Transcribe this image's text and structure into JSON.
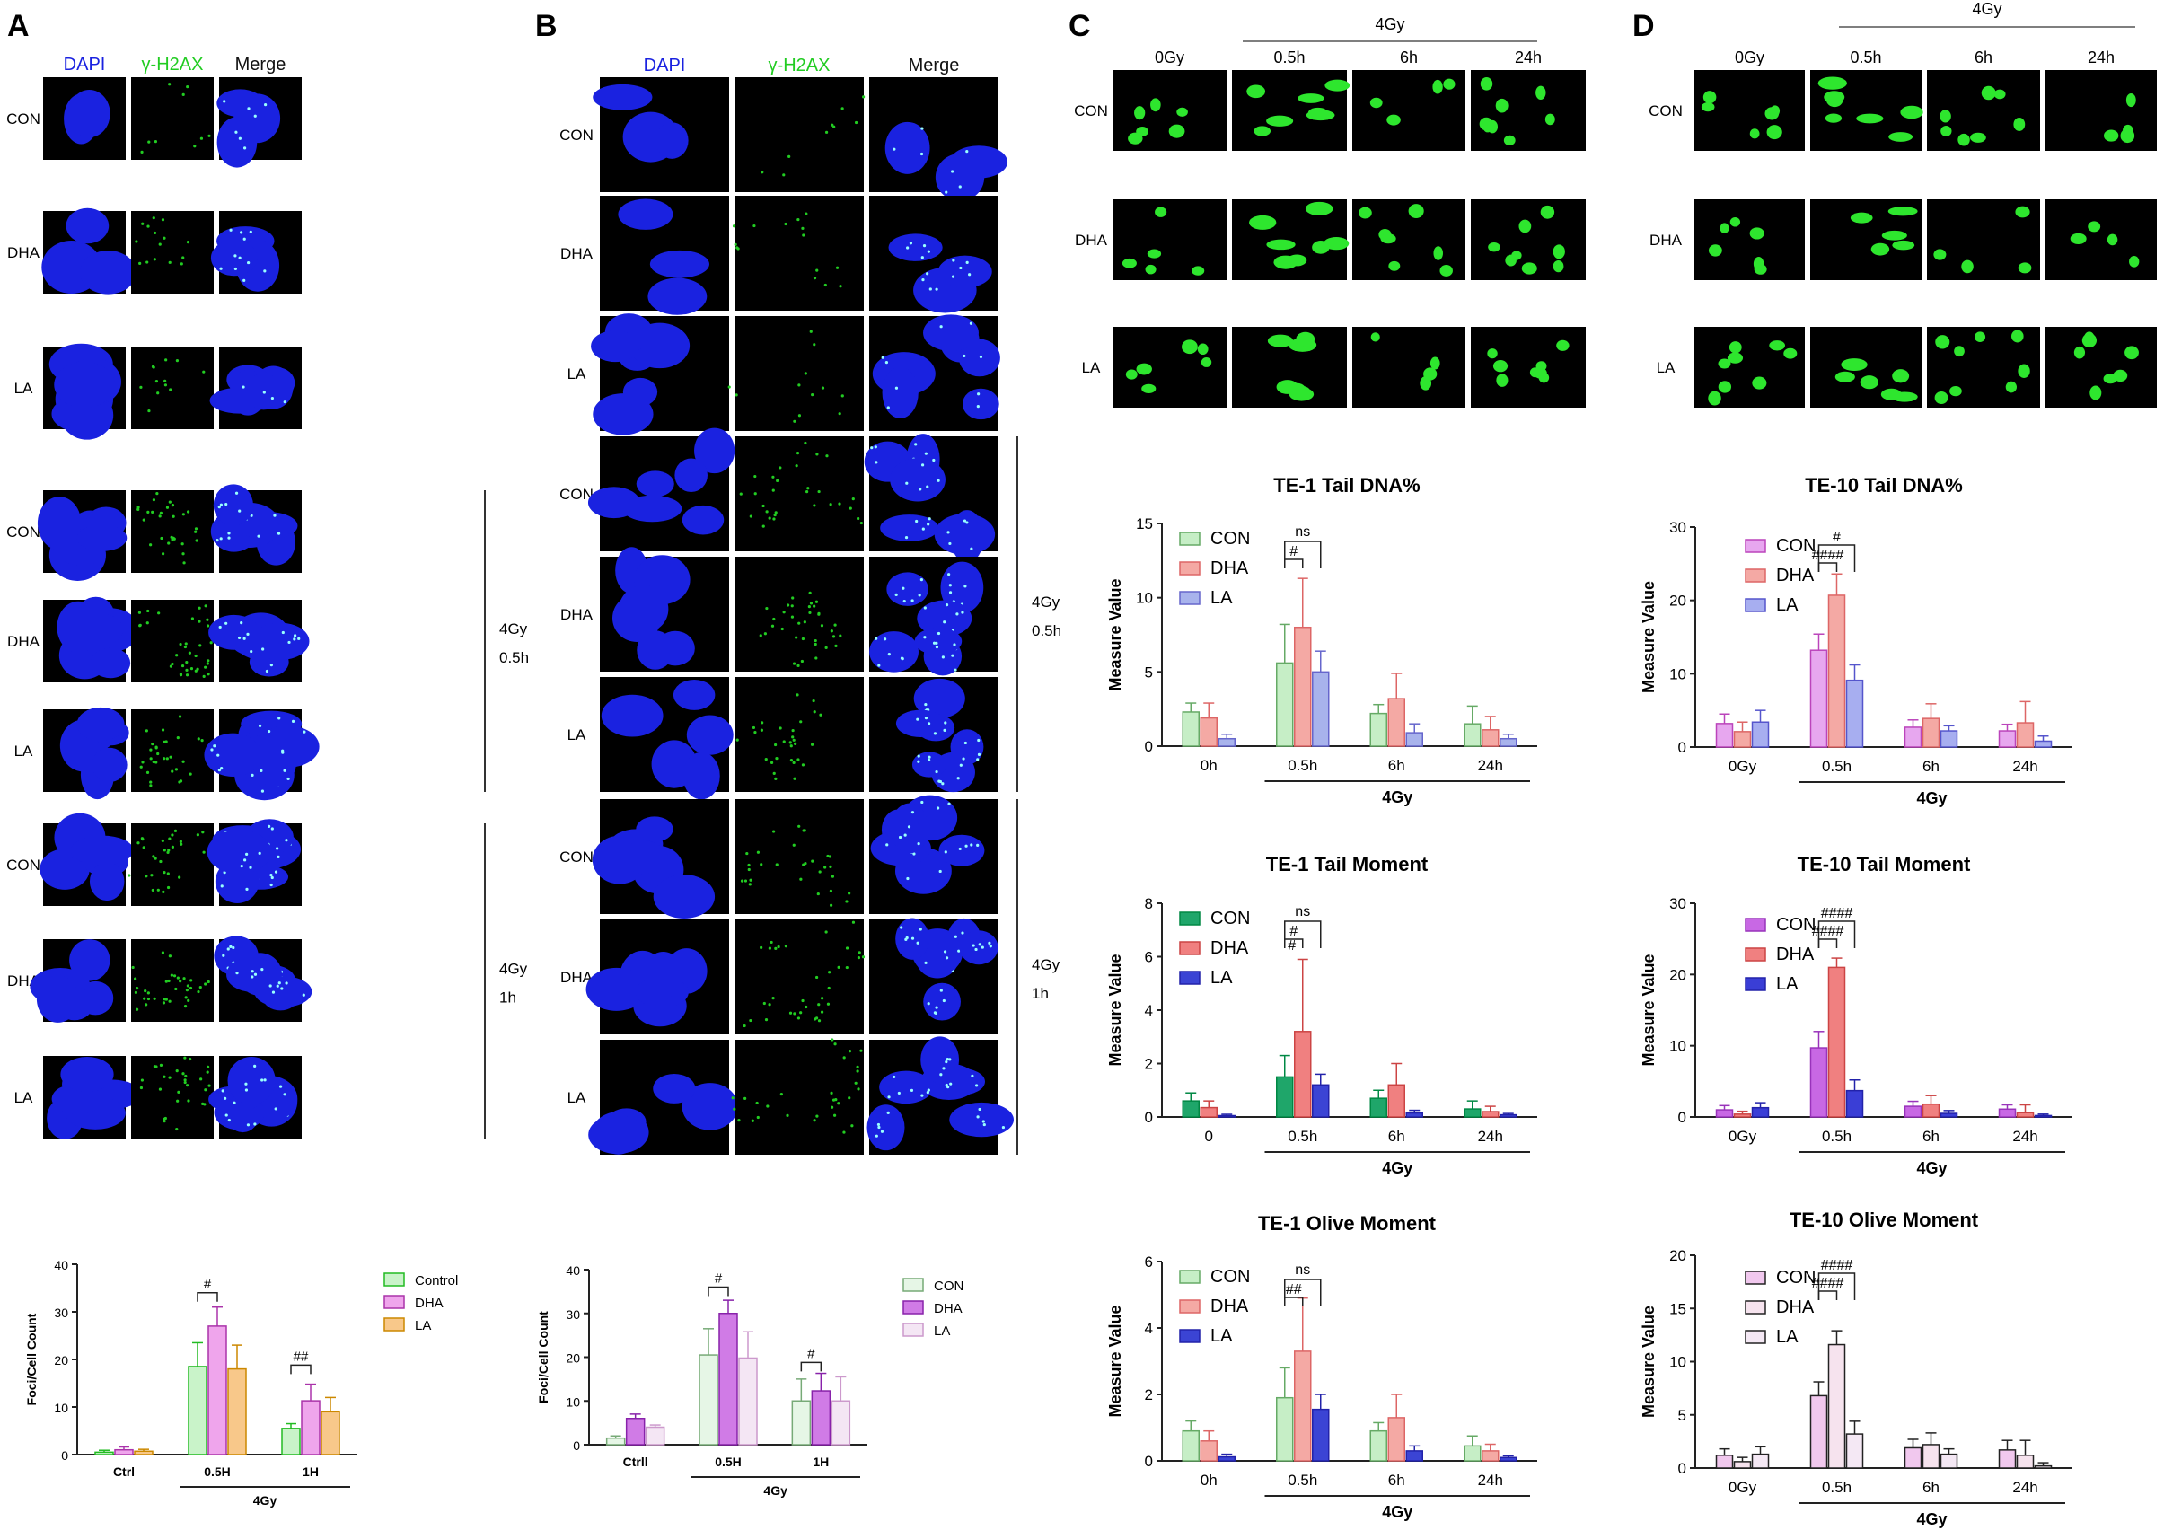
{
  "panel_letters": [
    "A",
    "B",
    "C",
    "D"
  ],
  "panelA": {
    "columns": [
      "DAPI",
      "γ-H2AX",
      "Merge"
    ],
    "rows": [
      "CON",
      "DHA",
      "LA",
      "CON",
      "DHA",
      "LA",
      "CON",
      "DHA",
      "LA"
    ],
    "groups": [
      {
        "line1": "4Gy",
        "line2": "0.5h"
      },
      {
        "line1": "4Gy",
        "line2": "1h"
      }
    ]
  },
  "panelB": {
    "columns": [
      "DAPI",
      "γ-H2AX",
      "Merge"
    ],
    "rows": [
      "CON",
      "DHA",
      "LA",
      "CON",
      "DHA",
      "LA",
      "CON",
      "DHA",
      "LA"
    ],
    "groups": [
      {
        "line1": "4Gy",
        "line2": "0.5h"
      },
      {
        "line1": "4Gy",
        "line2": "1h"
      }
    ]
  },
  "panelC": {
    "header": "4Gy",
    "columns": [
      "0Gy",
      "0.5h",
      "6h",
      "24h"
    ],
    "rows": [
      "CON",
      "DHA",
      "LA"
    ]
  },
  "panelD": {
    "header": "4Gy",
    "columns": [
      "0Gy",
      "0.5h",
      "6h",
      "24h"
    ],
    "rows": [
      "CON",
      "DHA",
      "LA"
    ]
  },
  "colors": {
    "dapi": "#1a22e0",
    "h2ax": "#22cc22",
    "comet": "#2ee62e",
    "c_con": "#c6eec6",
    "c_dha": "#f4a9a4",
    "c_la": "#a8b3ec",
    "c_con_dark": "#1fa66a",
    "c_dha_dark": "#f08080",
    "c_la_dark": "#3b44d4",
    "d_con": "#e7a7ef",
    "d_la": "#a7aef0",
    "d_con_dark": "#c868e4",
    "d_la_dark": "#3a3ed6",
    "d_olive_con": "#f1c8ee",
    "d_olive_dha": "#f6e3ee",
    "d_olive_la": "#f4e8f4",
    "a_control": "#c9f3c9",
    "a_dha": "#efa5ec",
    "a_la": "#f8c88a",
    "b_con": "#e6f6e6",
    "b_dha": "#d07be6",
    "b_la": "#f4e6f4"
  },
  "chart_data": [
    {
      "id": "A",
      "type": "bar",
      "ylabel": "Foci/Cell Count",
      "ylim": [
        0,
        40
      ],
      "yticks": [
        "0",
        "10",
        "20",
        "30",
        "40"
      ],
      "categories": [
        "Ctrl",
        "0.5H",
        "1H"
      ],
      "group_label": "4Gy",
      "series": [
        {
          "name": "Control",
          "values": [
            0.5,
            18.5,
            5.5
          ],
          "errors": [
            0.4,
            5,
            1
          ]
        },
        {
          "name": "DHA",
          "values": [
            1,
            27,
            11.3
          ],
          "errors": [
            0.6,
            4,
            3.5
          ]
        },
        {
          "name": "LA",
          "values": [
            0.7,
            18,
            9
          ],
          "errors": [
            0.4,
            5,
            3
          ]
        }
      ],
      "annotations": [
        {
          "text": "#",
          "group": 1
        },
        {
          "text": "##",
          "group": 2
        }
      ]
    },
    {
      "id": "B",
      "type": "bar",
      "ylabel": "Foci/Cell Count",
      "ylim": [
        0,
        40
      ],
      "yticks": [
        "0",
        "10",
        "20",
        "30",
        "40"
      ],
      "categories": [
        "Ctrll",
        "0.5H",
        "1H"
      ],
      "group_label": "4Gy",
      "series": [
        {
          "name": "CON",
          "values": [
            1.5,
            20.5,
            10
          ],
          "errors": [
            0.5,
            6,
            5
          ]
        },
        {
          "name": "DHA",
          "values": [
            6,
            30,
            12.3
          ],
          "errors": [
            1,
            3,
            4
          ]
        },
        {
          "name": "LA",
          "values": [
            4,
            19.8,
            10
          ],
          "errors": [
            0.5,
            6,
            5.5
          ]
        }
      ],
      "annotations": [
        {
          "text": "#",
          "group": 1
        },
        {
          "text": "#",
          "group": 2
        }
      ]
    },
    {
      "id": "C1",
      "type": "bar",
      "title": "TE-1 Tail DNA%",
      "ylabel": "Measure Value",
      "ylim": [
        0,
        15
      ],
      "yticks": [
        "0",
        "5",
        "10",
        "15"
      ],
      "categories": [
        "0h",
        "0.5h",
        "6h",
        "24h"
      ],
      "group_label": "4Gy",
      "series": [
        {
          "name": "CON",
          "values": [
            2.3,
            5.6,
            2.2,
            1.5
          ],
          "errors": [
            0.6,
            2.6,
            0.6,
            1.2
          ]
        },
        {
          "name": "DHA",
          "values": [
            1.9,
            8,
            3.2,
            1.1
          ],
          "errors": [
            1,
            3.3,
            1.7,
            0.9
          ]
        },
        {
          "name": "LA",
          "values": [
            0.5,
            5,
            0.9,
            0.5
          ],
          "errors": [
            0.3,
            1.4,
            0.6,
            0.3
          ]
        }
      ],
      "annotations": [
        {
          "text": "#"
        },
        {
          "text": "ns"
        }
      ]
    },
    {
      "id": "C2",
      "type": "bar",
      "title": "TE-1 Tail Moment",
      "ylabel": "Measure Value",
      "ylim": [
        0,
        8
      ],
      "yticks": [
        "0",
        "2",
        "4",
        "6",
        "8"
      ],
      "categories": [
        "0",
        "0.5h",
        "6h",
        "24h"
      ],
      "group_label": "4Gy",
      "series": [
        {
          "name": "CON",
          "values": [
            0.6,
            1.5,
            0.7,
            0.3
          ],
          "errors": [
            0.3,
            0.8,
            0.3,
            0.3
          ]
        },
        {
          "name": "DHA",
          "values": [
            0.35,
            3.2,
            1.2,
            0.2
          ],
          "errors": [
            0.25,
            2.7,
            0.8,
            0.2
          ]
        },
        {
          "name": "LA",
          "values": [
            0.05,
            1.2,
            0.15,
            0.08
          ],
          "errors": [
            0.05,
            0.4,
            0.1,
            0.05
          ]
        }
      ],
      "annotations": [
        {
          "text": "#"
        },
        {
          "text": "#"
        },
        {
          "text": "ns"
        }
      ]
    },
    {
      "id": "C3",
      "type": "bar",
      "title": "TE-1 Olive Moment",
      "ylabel": "Measure Value",
      "ylim": [
        0,
        6
      ],
      "yticks": [
        "0",
        "2",
        "4",
        "6"
      ],
      "categories": [
        "0h",
        "0.5h",
        "6h",
        "24h"
      ],
      "group_label": "4Gy",
      "series": [
        {
          "name": "CON",
          "values": [
            0.9,
            1.9,
            0.9,
            0.45
          ],
          "errors": [
            0.3,
            0.9,
            0.25,
            0.3
          ]
        },
        {
          "name": "DHA",
          "values": [
            0.6,
            3.3,
            1.3,
            0.3
          ],
          "errors": [
            0.3,
            1.6,
            0.7,
            0.2
          ]
        },
        {
          "name": "LA",
          "values": [
            0.12,
            1.55,
            0.3,
            0.1
          ],
          "errors": [
            0.08,
            0.45,
            0.15,
            0.05
          ]
        }
      ],
      "annotations": [
        {
          "text": "##"
        },
        {
          "text": "ns"
        }
      ]
    },
    {
      "id": "D1",
      "type": "bar",
      "title": "TE-10 Tail DNA%",
      "ylabel": "Measure Value",
      "ylim": [
        0,
        30
      ],
      "yticks": [
        "0",
        "10",
        "20",
        "30"
      ],
      "categories": [
        "0Gy",
        "0.5h",
        "6h",
        "24h"
      ],
      "group_label": "4Gy",
      "series": [
        {
          "name": "CON",
          "values": [
            3.2,
            13.2,
            2.7,
            2.2
          ],
          "errors": [
            1.3,
            2.2,
            1,
            0.9
          ]
        },
        {
          "name": "DHA",
          "values": [
            2.1,
            20.7,
            3.9,
            3.3
          ],
          "errors": [
            1.3,
            2.9,
            2,
            2.9
          ]
        },
        {
          "name": "LA",
          "values": [
            3.4,
            9.1,
            2.2,
            0.8
          ],
          "errors": [
            1.6,
            2.1,
            0.7,
            0.7
          ]
        }
      ],
      "annotations": [
        {
          "text": "####"
        },
        {
          "text": "#"
        }
      ]
    },
    {
      "id": "D2",
      "type": "bar",
      "title": "TE-10 Tail Moment",
      "ylabel": "Measure Value",
      "ylim": [
        0,
        30
      ],
      "yticks": [
        "0",
        "10",
        "20",
        "30"
      ],
      "categories": [
        "0Gy",
        "0.5h",
        "6h",
        "24h"
      ],
      "group_label": "4Gy",
      "series": [
        {
          "name": "CON",
          "values": [
            1,
            9.7,
            1.5,
            1.1
          ],
          "errors": [
            0.6,
            2.3,
            0.7,
            0.6
          ]
        },
        {
          "name": "DHA",
          "values": [
            0.4,
            21,
            1.8,
            0.6
          ],
          "errors": [
            0.4,
            1.3,
            1.2,
            1.1
          ]
        },
        {
          "name": "LA",
          "values": [
            1.3,
            3.7,
            0.5,
            0.2
          ],
          "errors": [
            0.7,
            1.5,
            0.4,
            0.2
          ]
        }
      ],
      "annotations": [
        {
          "text": "####"
        },
        {
          "text": "####"
        }
      ]
    },
    {
      "id": "D3",
      "type": "bar",
      "title": "TE-10 Olive Moment",
      "ylabel": "Measure Value",
      "ylim": [
        0,
        20
      ],
      "yticks": [
        "0",
        "5",
        "10",
        "15",
        "20"
      ],
      "categories": [
        "0Gy",
        "0.5h",
        "6h",
        "24h"
      ],
      "group_label": "4Gy",
      "series": [
        {
          "name": "CON",
          "values": [
            1.2,
            6.8,
            1.9,
            1.7
          ],
          "errors": [
            0.6,
            1.3,
            0.8,
            0.9
          ]
        },
        {
          "name": "DHA",
          "values": [
            0.6,
            11.6,
            2.2,
            1.2
          ],
          "errors": [
            0.4,
            1.3,
            1.1,
            1.4
          ]
        },
        {
          "name": "LA",
          "values": [
            1.3,
            3.2,
            1.3,
            0.2
          ],
          "errors": [
            0.7,
            1.2,
            0.5,
            0.3
          ]
        }
      ],
      "annotations": [
        {
          "text": "####"
        },
        {
          "text": "####"
        }
      ]
    }
  ]
}
